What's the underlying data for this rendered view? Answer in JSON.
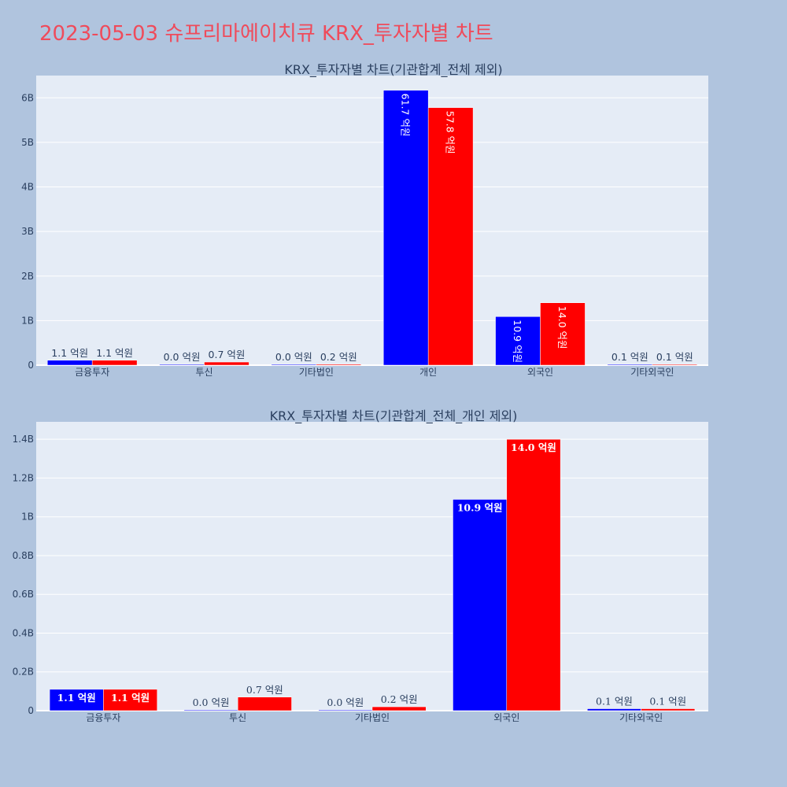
{
  "page": {
    "title": "2023-05-03 슈프리마에이치큐 KRX_투자자별 차트"
  },
  "colors": {
    "background": "#b0c4de",
    "plot_bg": "#e5ecf6",
    "grid": "#ffffff",
    "series_a": "#0000ff",
    "series_b": "#ff0000",
    "title": "#ef4b5b",
    "text": "#2a3f5f"
  },
  "chart_data": [
    {
      "type": "bar",
      "title": "KRX_투자자별 차트(기관합계_전체 제외)",
      "categories": [
        "금융투자",
        "투신",
        "기타법인",
        "개인",
        "외국인",
        "기타외국인"
      ],
      "series": [
        {
          "color": "#0000ff",
          "values": [
            110000000,
            0,
            0,
            6170000000,
            1090000000,
            10000000
          ],
          "labels": [
            "1.1 억원",
            "0.0 억원",
            "0.0 억원",
            "61.7 억원",
            "10.9 억원",
            "0.1 억원"
          ]
        },
        {
          "color": "#ff0000",
          "values": [
            110000000,
            70000000,
            20000000,
            5780000000,
            1400000000,
            10000000
          ],
          "labels": [
            "1.1 억원",
            "0.7 억원",
            "0.2 억원",
            "57.8 억원",
            "14.0 억원",
            "0.1 억원"
          ]
        }
      ],
      "ylim": [
        0,
        6500000000
      ],
      "yticks": [
        0,
        1000000000,
        2000000000,
        3000000000,
        4000000000,
        5000000000,
        6000000000
      ],
      "ytick_labels": [
        "0",
        "1B",
        "2B",
        "3B",
        "4B",
        "5B",
        "6B"
      ],
      "grid": true,
      "xlabel": "",
      "ylabel": ""
    },
    {
      "type": "bar",
      "title": "KRX_투자자별 차트(기관합계_전체_개인 제외)",
      "categories": [
        "금융투자",
        "투신",
        "기타법인",
        "외국인",
        "기타외국인"
      ],
      "series": [
        {
          "color": "#0000ff",
          "values": [
            110000000,
            0,
            0,
            1090000000,
            10000000
          ],
          "labels": [
            "1.1 억원",
            "0.0 억원",
            "0.0 억원",
            "10.9 억원",
            "0.1 억원"
          ]
        },
        {
          "color": "#ff0000",
          "values": [
            110000000,
            70000000,
            20000000,
            1400000000,
            10000000
          ],
          "labels": [
            "1.1 억원",
            "0.7 억원",
            "0.2 억원",
            "14.0 억원",
            "0.1 억원"
          ]
        }
      ],
      "ylim": [
        0,
        1490000000
      ],
      "yticks": [
        0,
        200000000,
        400000000,
        600000000,
        800000000,
        1000000000,
        1200000000,
        1400000000
      ],
      "ytick_labels": [
        "0",
        "0.2B",
        "0.4B",
        "0.6B",
        "0.8B",
        "1B",
        "1.2B",
        "1.4B"
      ],
      "grid": true,
      "xlabel": "",
      "ylabel": ""
    }
  ]
}
